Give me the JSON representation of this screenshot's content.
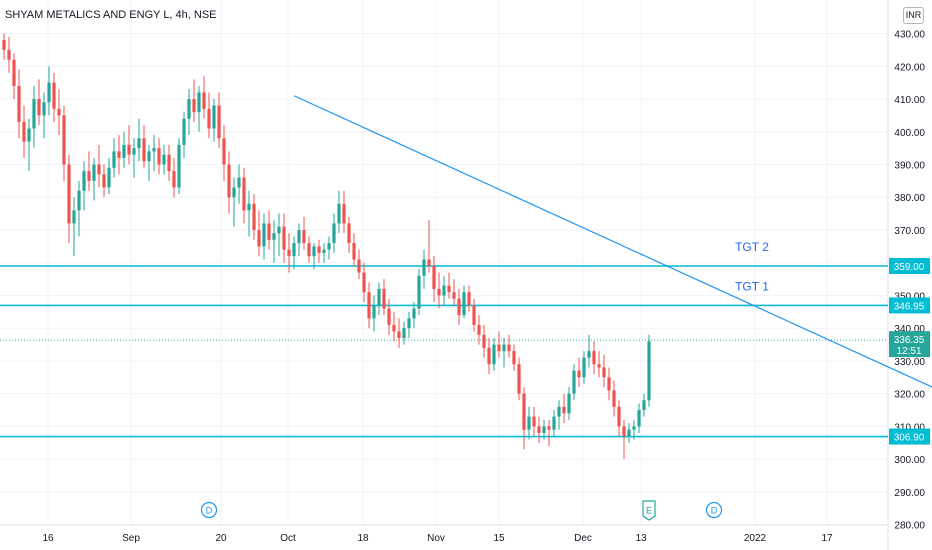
{
  "header": {
    "symbol_line": "SHYAM METALICS AND ENGY L, 4h, NSE",
    "currency": "INR"
  },
  "colors": {
    "up": "#26a69a",
    "down": "#ef5350",
    "level": "#00bcd4",
    "trend": "#2196f3",
    "grid": "#f0f3fa",
    "text": "#131722",
    "label": "#2962ff"
  },
  "chart_data": {
    "type": "candlestick",
    "y_ticks": [
      "280.00",
      "290.00",
      "300.00",
      "310.00",
      "320.00",
      "330.00",
      "340.00",
      "350.00",
      "360.00",
      "370.00",
      "380.00",
      "390.00",
      "400.00",
      "410.00",
      "420.00",
      "430.00"
    ],
    "x_ticks": [
      "16",
      "Sep",
      "20",
      "Oct",
      "18",
      "Nov",
      "15",
      "Dec",
      "13",
      "2022",
      "17"
    ],
    "ylim": [
      275,
      432
    ],
    "levels": [
      {
        "value": 359.0,
        "label": "359.00",
        "name": "TGT 2"
      },
      {
        "value": 346.95,
        "label": "346.95",
        "name": "TGT 1"
      },
      {
        "value": 306.9,
        "label": "306.90",
        "name": ""
      }
    ],
    "last_price": {
      "value": 336.35,
      "label": "336.35",
      "timer": "12:51"
    },
    "trendline": {
      "start": {
        "bar": 58,
        "price": 411.0
      },
      "end": {
        "bar": 195,
        "price": 315.5
      }
    },
    "event_markers": [
      {
        "bar": 41,
        "letter": "D"
      },
      {
        "bar": 129,
        "letter": "E"
      },
      {
        "bar": 142,
        "letter": "D"
      }
    ],
    "candles_ohlc": [
      [
        428,
        430,
        422,
        425
      ],
      [
        425,
        429,
        418,
        422
      ],
      [
        422,
        424,
        410,
        414
      ],
      [
        414,
        419,
        398,
        403
      ],
      [
        403,
        408,
        392,
        397
      ],
      [
        397,
        404,
        388,
        401
      ],
      [
        401,
        414,
        395,
        410
      ],
      [
        410,
        416,
        402,
        405
      ],
      [
        405,
        412,
        398,
        409
      ],
      [
        409,
        420,
        405,
        415
      ],
      [
        415,
        418,
        403,
        407
      ],
      [
        407,
        413,
        399,
        405
      ],
      [
        405,
        408,
        385,
        390
      ],
      [
        390,
        393,
        366,
        372
      ],
      [
        372,
        380,
        362,
        376
      ],
      [
        376,
        385,
        368,
        382
      ],
      [
        382,
        391,
        376,
        388
      ],
      [
        388,
        394,
        382,
        385
      ],
      [
        385,
        392,
        379,
        390
      ],
      [
        390,
        396,
        383,
        387
      ],
      [
        387,
        390,
        380,
        383
      ],
      [
        383,
        392,
        381,
        389
      ],
      [
        389,
        398,
        386,
        394
      ],
      [
        394,
        399,
        387,
        392
      ],
      [
        392,
        400,
        389,
        396
      ],
      [
        396,
        402,
        390,
        393
      ],
      [
        393,
        398,
        386,
        395
      ],
      [
        395,
        404,
        391,
        398
      ],
      [
        398,
        402,
        389,
        391
      ],
      [
        391,
        396,
        385,
        394
      ],
      [
        394,
        399,
        388,
        395
      ],
      [
        395,
        398,
        387,
        390
      ],
      [
        390,
        396,
        387,
        393
      ],
      [
        393,
        396,
        385,
        388
      ],
      [
        388,
        392,
        380,
        383
      ],
      [
        383,
        398,
        381,
        396
      ],
      [
        396,
        406,
        392,
        404
      ],
      [
        404,
        413,
        399,
        410
      ],
      [
        410,
        416,
        403,
        406
      ],
      [
        406,
        414,
        400,
        412
      ],
      [
        412,
        417,
        404,
        407
      ],
      [
        407,
        412,
        398,
        401
      ],
      [
        401,
        410,
        397,
        408
      ],
      [
        408,
        412,
        395,
        398
      ],
      [
        398,
        402,
        385,
        390
      ],
      [
        390,
        394,
        375,
        380
      ],
      [
        380,
        386,
        371,
        383
      ],
      [
        383,
        390,
        378,
        386
      ],
      [
        386,
        389,
        372,
        376
      ],
      [
        376,
        382,
        368,
        378
      ],
      [
        378,
        381,
        367,
        370
      ],
      [
        370,
        376,
        362,
        365
      ],
      [
        365,
        375,
        361,
        372
      ],
      [
        372,
        376,
        364,
        367
      ],
      [
        367,
        373,
        360,
        369
      ],
      [
        369,
        375,
        362,
        371
      ],
      [
        371,
        375,
        360,
        364
      ],
      [
        364,
        369,
        357,
        362
      ],
      [
        362,
        368,
        358,
        366
      ],
      [
        366,
        372,
        362,
        370
      ],
      [
        370,
        374,
        364,
        366
      ],
      [
        366,
        368,
        360,
        362
      ],
      [
        362,
        366,
        358,
        365
      ],
      [
        365,
        367,
        360,
        363
      ],
      [
        363,
        366,
        360,
        364
      ],
      [
        364,
        368,
        361,
        366
      ],
      [
        366,
        375,
        363,
        372
      ],
      [
        372,
        382,
        369,
        378
      ],
      [
        378,
        382,
        369,
        372
      ],
      [
        372,
        374,
        363,
        366
      ],
      [
        366,
        369,
        359,
        361
      ],
      [
        361,
        364,
        355,
        357
      ],
      [
        357,
        360,
        348,
        351
      ],
      [
        351,
        354,
        340,
        343
      ],
      [
        343,
        350,
        339,
        347
      ],
      [
        347,
        354,
        344,
        352
      ],
      [
        352,
        355,
        344,
        346
      ],
      [
        346,
        349,
        338,
        341
      ],
      [
        341,
        345,
        336,
        339
      ],
      [
        339,
        343,
        334,
        337
      ],
      [
        337,
        342,
        335,
        340
      ],
      [
        340,
        345,
        337,
        343
      ],
      [
        343,
        348,
        340,
        346
      ],
      [
        346,
        358,
        344,
        356
      ],
      [
        356,
        364,
        352,
        361
      ],
      [
        361,
        373,
        357,
        359
      ],
      [
        359,
        362,
        348,
        352
      ],
      [
        352,
        357,
        346,
        350
      ],
      [
        350,
        356,
        347,
        353
      ],
      [
        353,
        357,
        349,
        351
      ],
      [
        351,
        355,
        347,
        349
      ],
      [
        349,
        352,
        341,
        344
      ],
      [
        344,
        353,
        343,
        351
      ],
      [
        351,
        353,
        345,
        347
      ],
      [
        347,
        349,
        339,
        341
      ],
      [
        341,
        344,
        335,
        338
      ],
      [
        338,
        341,
        331,
        334
      ],
      [
        334,
        337,
        326,
        329
      ],
      [
        329,
        337,
        327,
        335
      ],
      [
        335,
        339,
        331,
        333
      ],
      [
        333,
        337,
        328,
        335
      ],
      [
        335,
        338,
        331,
        333
      ],
      [
        333,
        335,
        327,
        329
      ],
      [
        329,
        331,
        318,
        320
      ],
      [
        320,
        322,
        303,
        309
      ],
      [
        309,
        316,
        306,
        313
      ],
      [
        313,
        316,
        307,
        310
      ],
      [
        310,
        313,
        305,
        308
      ],
      [
        308,
        312,
        306,
        310
      ],
      [
        310,
        312,
        304,
        309
      ],
      [
        309,
        315,
        307,
        313
      ],
      [
        313,
        318,
        309,
        316
      ],
      [
        316,
        320,
        311,
        314
      ],
      [
        314,
        322,
        312,
        320
      ],
      [
        320,
        329,
        318,
        327
      ],
      [
        327,
        331,
        322,
        325
      ],
      [
        325,
        333,
        323,
        331
      ],
      [
        331,
        338,
        328,
        333
      ],
      [
        333,
        336,
        326,
        329
      ],
      [
        329,
        333,
        325,
        328
      ],
      [
        328,
        332,
        322,
        325
      ],
      [
        325,
        328,
        318,
        321
      ],
      [
        321,
        324,
        313,
        316
      ],
      [
        316,
        318,
        307,
        310
      ],
      [
        310,
        312,
        300,
        307
      ],
      [
        307,
        311,
        305,
        309
      ],
      [
        309,
        312,
        306,
        310
      ],
      [
        310,
        317,
        308,
        315
      ],
      [
        315,
        320,
        313,
        318
      ],
      [
        318,
        338,
        316,
        336
      ]
    ]
  }
}
